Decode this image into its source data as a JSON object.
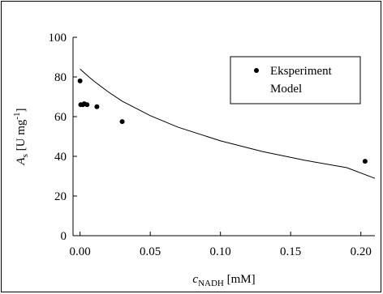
{
  "chart_data": {
    "type": "scatter",
    "xlabel": {
      "main": "c",
      "sub": "NADH",
      "unit": " [mM]"
    },
    "ylabel": {
      "main": "A",
      "sub": "s",
      "unit": " [U mg",
      "sup": "-1",
      "close": "]"
    },
    "xlim": [
      -0.005,
      0.21
    ],
    "ylim": [
      0,
      100
    ],
    "xticks": [
      "0.00",
      "0.05",
      "0.10",
      "0.15",
      "0.20"
    ],
    "xtick_values": [
      0.0,
      0.05,
      0.1,
      0.15,
      0.2
    ],
    "yticks": [
      "0",
      "20",
      "40",
      "60",
      "80",
      "100"
    ],
    "ytick_values": [
      0,
      20,
      40,
      60,
      80,
      100
    ],
    "grid": false,
    "legend_position": "top-right",
    "series": [
      {
        "name": "Eksperiment",
        "kind": "points",
        "x": [
          0.0,
          0.0005,
          0.002,
          0.003,
          0.005,
          0.012,
          0.03,
          0.203
        ],
        "y": [
          78,
          66,
          66,
          66.5,
          66,
          65,
          57.5,
          37.5
        ]
      },
      {
        "name": "Model",
        "kind": "line",
        "x": [
          0.0,
          0.005,
          0.01,
          0.02,
          0.03,
          0.05,
          0.07,
          0.1,
          0.13,
          0.16,
          0.19,
          0.21
        ],
        "y": [
          84,
          80.8,
          77.8,
          72.5,
          67.8,
          60.5,
          54.6,
          47.8,
          42.4,
          38.0,
          34.3,
          28.9
        ]
      }
    ]
  }
}
